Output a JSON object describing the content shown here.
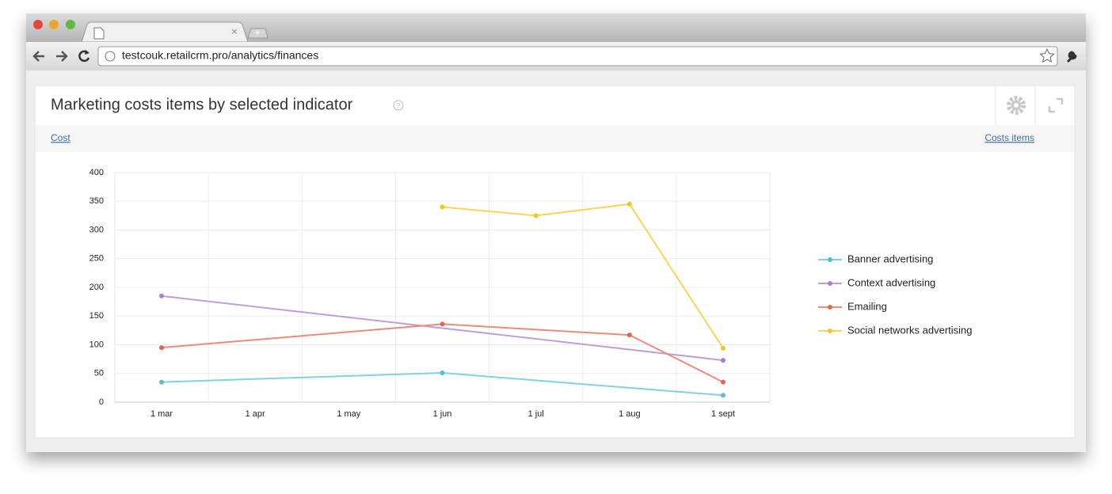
{
  "browser": {
    "url": "testcouk.retailcrm.pro/analytics/finances"
  },
  "widget": {
    "title": "Marketing costs items by selected indicator",
    "filter_left": "Cost",
    "filter_right": "Costs items"
  },
  "chart_data": {
    "type": "line",
    "categories": [
      "1 mar",
      "1 apr",
      "1 may",
      "1 jun",
      "1 jul",
      "1 aug",
      "1 sept"
    ],
    "series": [
      {
        "name": "Banner advertising",
        "color": "#7fd4dd",
        "marker_color": "#56bfcf",
        "x": [
          "1 mar",
          "1 jun",
          "1 sept"
        ],
        "values": [
          35,
          51,
          12
        ]
      },
      {
        "name": "Context advertising",
        "color": "#bc9fdb",
        "marker_color": "#a67fd0",
        "x": [
          "1 mar",
          "1 sept"
        ],
        "values": [
          185,
          73
        ]
      },
      {
        "name": "Emailing",
        "color": "#ee8a7b",
        "marker_color": "#e8644f",
        "x": [
          "1 mar",
          "1 jun",
          "1 aug",
          "1 sept"
        ],
        "values": [
          95,
          136,
          117,
          35
        ]
      },
      {
        "name": "Social networks advertising",
        "color": "#fad45a",
        "marker_color": "#f6c524",
        "x": [
          "1 jun",
          "1 jul",
          "1 aug",
          "1 sept"
        ],
        "values": [
          340,
          325,
          345,
          94
        ]
      }
    ],
    "ylim": [
      0,
      400
    ],
    "yticks": [
      0,
      50,
      100,
      150,
      200,
      250,
      300,
      350,
      400
    ],
    "grid": true,
    "legend": "right"
  }
}
